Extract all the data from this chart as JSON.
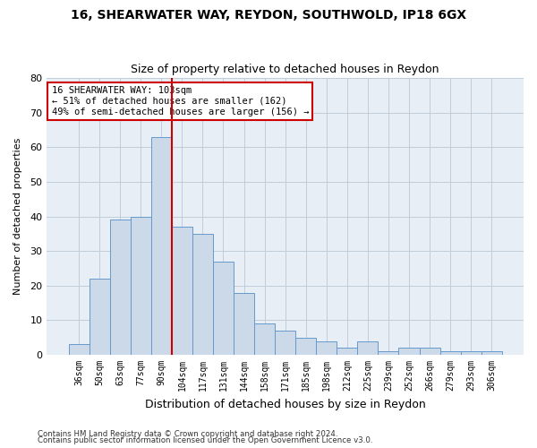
{
  "title1": "16, SHEARWATER WAY, REYDON, SOUTHWOLD, IP18 6GX",
  "title2": "Size of property relative to detached houses in Reydon",
  "xlabel": "Distribution of detached houses by size in Reydon",
  "ylabel": "Number of detached properties",
  "categories": [
    "36sqm",
    "50sqm",
    "63sqm",
    "77sqm",
    "90sqm",
    "104sqm",
    "117sqm",
    "131sqm",
    "144sqm",
    "158sqm",
    "171sqm",
    "185sqm",
    "198sqm",
    "212sqm",
    "225sqm",
    "239sqm",
    "252sqm",
    "266sqm",
    "279sqm",
    "293sqm",
    "306sqm"
  ],
  "values": [
    3,
    22,
    39,
    40,
    63,
    37,
    35,
    27,
    18,
    9,
    7,
    5,
    4,
    2,
    4,
    1,
    2,
    2,
    1,
    1,
    1
  ],
  "bar_color": "#ccd9e8",
  "bar_edge_color": "#6699cc",
  "annotation_title": "16 SHEARWATER WAY: 103sqm",
  "annotation_line1": "← 51% of detached houses are smaller (162)",
  "annotation_line2": "49% of semi-detached houses are larger (156) →",
  "annotation_box_color": "#ffffff",
  "annotation_box_edge": "#cc0000",
  "vline_color": "#cc0000",
  "footer1": "Contains HM Land Registry data © Crown copyright and database right 2024.",
  "footer2": "Contains public sector information licensed under the Open Government Licence v3.0.",
  "ylim": [
    0,
    80
  ],
  "yticks": [
    0,
    10,
    20,
    30,
    40,
    50,
    60,
    70,
    80
  ],
  "grid_color": "#c0ccd8",
  "bg_color": "#e8eef5",
  "fig_width": 6.0,
  "fig_height": 5.0,
  "dpi": 100
}
